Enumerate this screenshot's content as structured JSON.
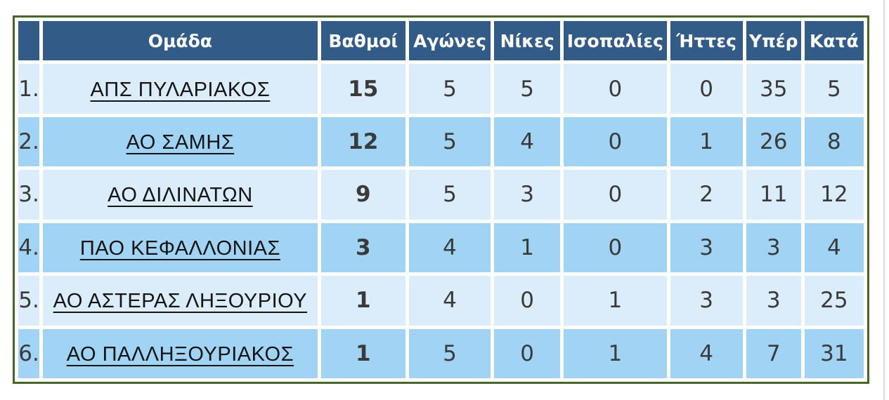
{
  "page": {
    "background": "#ffffff",
    "edge_line_color": "#d9d9d9"
  },
  "table": {
    "border_color": "#466727",
    "header_bg": "#325b88",
    "header_text_color": "#ffffff",
    "row_light_bg": "#dbedfb",
    "row_dark_bg": "#a1d4f4",
    "text_color": "#3a3a3a",
    "headers": {
      "rank": "",
      "team": "Ομάδα",
      "points": "Βαθμοί",
      "games": "Αγώνες",
      "wins": "Νίκες",
      "draws": "Ισοπαλίες",
      "losses": "Ήττες",
      "goals_for": "Υπέρ",
      "goals_against": "Κατά"
    },
    "rows": [
      {
        "rank": "1.",
        "team": "ΑΠΣ ΠΥΛΑΡΙΑΚΟΣ",
        "points": "15",
        "games": "5",
        "wins": "5",
        "draws": "0",
        "losses": "0",
        "goals_for": "35",
        "goals_against": "5"
      },
      {
        "rank": "2.",
        "team": "ΑΟ ΣΑΜΗΣ",
        "points": "12",
        "games": "5",
        "wins": "4",
        "draws": "0",
        "losses": "1",
        "goals_for": "26",
        "goals_against": "8"
      },
      {
        "rank": "3.",
        "team": "ΑΟ ΔΙΛΙΝΑΤΩΝ",
        "points": "9",
        "games": "5",
        "wins": "3",
        "draws": "0",
        "losses": "2",
        "goals_for": "11",
        "goals_against": "12"
      },
      {
        "rank": "4.",
        "team": "ΠΑΟ ΚΕΦΑΛΛΟΝΙΑΣ",
        "points": "3",
        "games": "4",
        "wins": "1",
        "draws": "0",
        "losses": "3",
        "goals_for": "3",
        "goals_against": "4"
      },
      {
        "rank": "5.",
        "team": "ΑΟ ΑΣΤΕΡΑΣ ΛΗΞΟΥΡΙΟΥ",
        "points": "1",
        "games": "4",
        "wins": "0",
        "draws": "1",
        "losses": "3",
        "goals_for": "3",
        "goals_against": "25"
      },
      {
        "rank": "6.",
        "team": "ΑΟ ΠΑΛΛΗΞΟΥΡΙΑΚΟΣ",
        "points": "1",
        "games": "5",
        "wins": "0",
        "draws": "1",
        "losses": "4",
        "goals_for": "7",
        "goals_against": "31"
      }
    ]
  }
}
